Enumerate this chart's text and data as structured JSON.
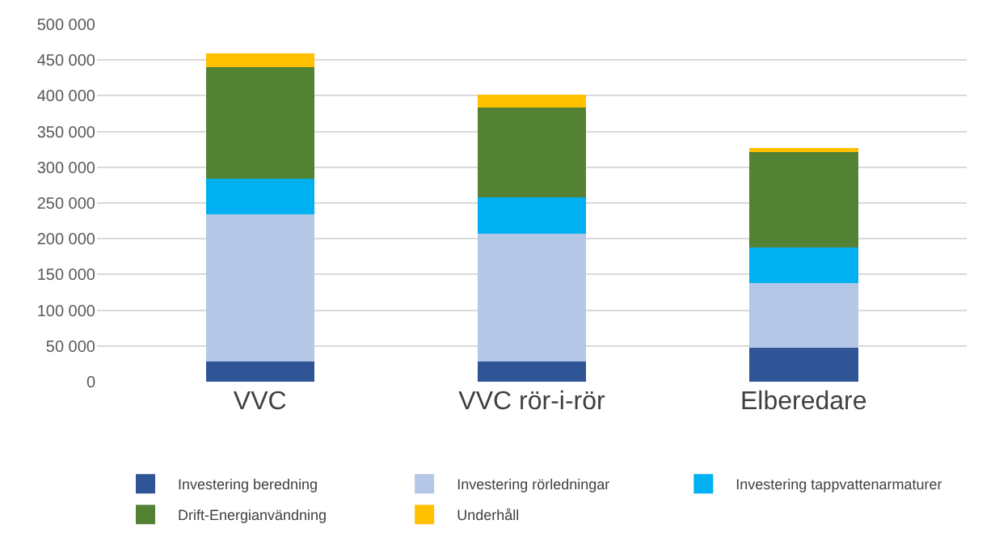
{
  "chart_data": {
    "type": "bar",
    "stacked": true,
    "categories": [
      "VVC",
      "VVC rör-i-rör",
      "Elberedare"
    ],
    "series": [
      {
        "name": "Investering beredning",
        "color": "#2f5597",
        "values": [
          28000,
          28000,
          47000
        ]
      },
      {
        "name": "Investering rörledningar",
        "color": "#b4c7e7",
        "values": [
          206000,
          179000,
          91000
        ]
      },
      {
        "name": "Investering tappvattenarmaturer",
        "color": "#00b0f0",
        "values": [
          50000,
          51000,
          50000
        ]
      },
      {
        "name": "Drift-Energianvändning",
        "color": "#548235",
        "values": [
          156000,
          125000,
          135000
        ]
      },
      {
        "name": "Underhåll",
        "color": "#ffc000",
        "values": [
          19000,
          19000,
          4000
        ]
      }
    ],
    "ylim": [
      0,
      500000
    ],
    "yticks": [
      {
        "value": 0,
        "label": "0"
      },
      {
        "value": 50000,
        "label": "50 000"
      },
      {
        "value": 100000,
        "label": "100 000"
      },
      {
        "value": 150000,
        "label": "150 000"
      },
      {
        "value": 200000,
        "label": "200 000"
      },
      {
        "value": 250000,
        "label": "250 000"
      },
      {
        "value": 300000,
        "label": "300 000"
      },
      {
        "value": 350000,
        "label": "350 000"
      },
      {
        "value": 400000,
        "label": "400 000"
      },
      {
        "value": 450000,
        "label": "450 000"
      },
      {
        "value": 500000,
        "label": "500 000"
      }
    ],
    "grid": "y",
    "legend": "bottom"
  }
}
